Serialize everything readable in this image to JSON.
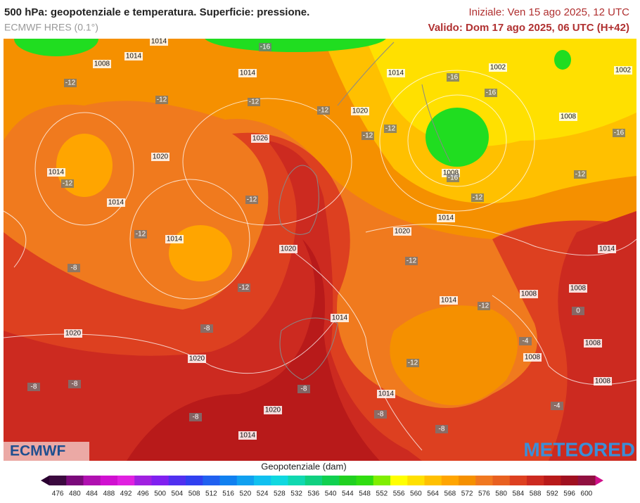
{
  "header": {
    "title": "500 hPa: geopotenziale e temperatura. Superficie: pressione.",
    "model": "ECMWF HRES (0.1°)",
    "init": "Iniziale: Ven 15 ago 2025, 12 UTC",
    "valid": "Valido: Dom 17 ago 2025, 06 UTC (H+42)"
  },
  "map": {
    "isobar_labels": [
      "1014",
      "1008",
      "1014",
      "1014",
      "1026",
      "1020",
      "1014",
      "1014",
      "1014",
      "1020",
      "1020",
      "1014",
      "1002",
      "1002",
      "1008",
      "1008",
      "1014",
      "1020",
      "1014",
      "1008",
      "1008",
      "1014",
      "1014",
      "1020",
      "1020",
      "1008",
      "1008",
      "1008",
      "1014",
      "1020",
      "1014"
    ],
    "temperature_labels": [
      "-12",
      "-12",
      "-12",
      "-16",
      "-12",
      "-12",
      "-12",
      "-16",
      "-16",
      "-16",
      "-16",
      "-12",
      "-12",
      "-12",
      "-12",
      "-12",
      "-8",
      "-12",
      "-12",
      "-12",
      "-8",
      "-4",
      "-12",
      "-8",
      "-8",
      "-8",
      "-8",
      "-8",
      "-8",
      "-4",
      "0"
    ]
  },
  "logos": {
    "left": "ECMWF",
    "right": "METEORED"
  },
  "colorbar": {
    "label": "Geopotenziale (dam)",
    "ticks": [
      476,
      480,
      484,
      488,
      492,
      496,
      500,
      504,
      508,
      512,
      516,
      520,
      524,
      528,
      532,
      536,
      540,
      544,
      548,
      552,
      556,
      560,
      564,
      568,
      572,
      576,
      580,
      584,
      588,
      592,
      596,
      600
    ],
    "colors": [
      "#3b0a3f",
      "#7a0a7a",
      "#b010b0",
      "#d010d0",
      "#e020e0",
      "#a020e0",
      "#8020f0",
      "#5030f0",
      "#3040f0",
      "#2060f0",
      "#1080f0",
      "#10a0f0",
      "#10c0f0",
      "#10d8e0",
      "#10d8b0",
      "#10d080",
      "#10d050",
      "#20d020",
      "#30dd10",
      "#80ee00",
      "#ffff00",
      "#ffe000",
      "#ffc000",
      "#ffa500",
      "#f59000",
      "#f07820",
      "#e86020",
      "#dd4020",
      "#cc2a20",
      "#b81a1a",
      "#a01020",
      "#901040"
    ]
  }
}
